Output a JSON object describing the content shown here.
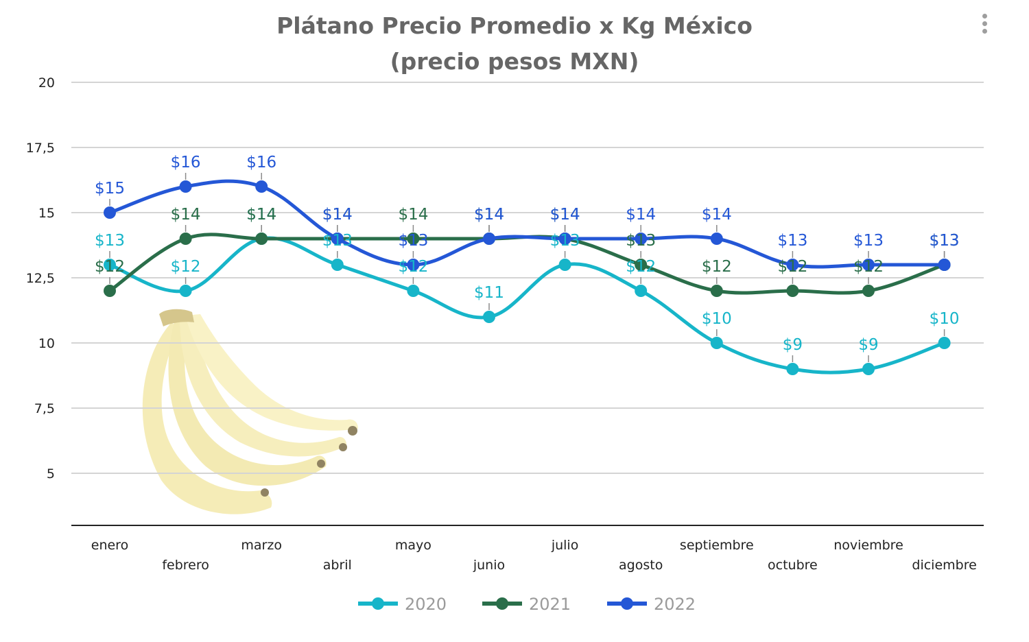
{
  "chart_data": {
    "type": "line",
    "title": "Plátano Precio Promedio x Kg México",
    "subtitle": "(precio pesos MXN)",
    "categories": [
      "enero",
      "febrero",
      "marzo",
      "abril",
      "mayo",
      "junio",
      "julio",
      "agosto",
      "septiembre",
      "octubre",
      "noviembre",
      "diciembre"
    ],
    "yticks": [
      "20",
      "17,5",
      "15",
      "12,5",
      "10",
      "7,5",
      "5"
    ],
    "ytick_values": [
      20,
      17.5,
      15,
      12.5,
      10,
      7.5,
      5
    ],
    "ylim": [
      3,
      20
    ],
    "grid": true,
    "legend_position": "bottom",
    "series": [
      {
        "name": "2020",
        "color": "#17b5c9",
        "values": [
          13,
          12,
          14,
          13,
          12,
          11,
          13,
          12,
          10,
          9,
          9,
          10
        ],
        "labels": [
          "$13",
          "$12",
          "$14",
          "$13",
          "$12",
          "$11",
          "$13",
          "$12",
          "$10",
          "$9",
          "$9",
          "$10"
        ]
      },
      {
        "name": "2021",
        "color": "#2a6e4a",
        "values": [
          12,
          14,
          14,
          14,
          14,
          14,
          14,
          13,
          12,
          12,
          12,
          13
        ],
        "labels": [
          "$12",
          "$14",
          "$14",
          "$14",
          "$14",
          "$14",
          "$14",
          "$13",
          "$12",
          "$12",
          "$12",
          "$13"
        ]
      },
      {
        "name": "2022",
        "color": "#2457d6",
        "values": [
          15,
          16,
          16,
          14,
          13,
          14,
          14,
          14,
          14,
          13,
          13,
          13
        ],
        "labels": [
          "$15",
          "$16",
          "$16",
          "$14",
          "$13",
          "$14",
          "$14",
          "$14",
          "$14",
          "$13",
          "$13",
          "$13"
        ]
      }
    ]
  },
  "ui": {
    "menu_icon": "more-vertical-icon",
    "image_icon": "banana-bunch-icon"
  }
}
